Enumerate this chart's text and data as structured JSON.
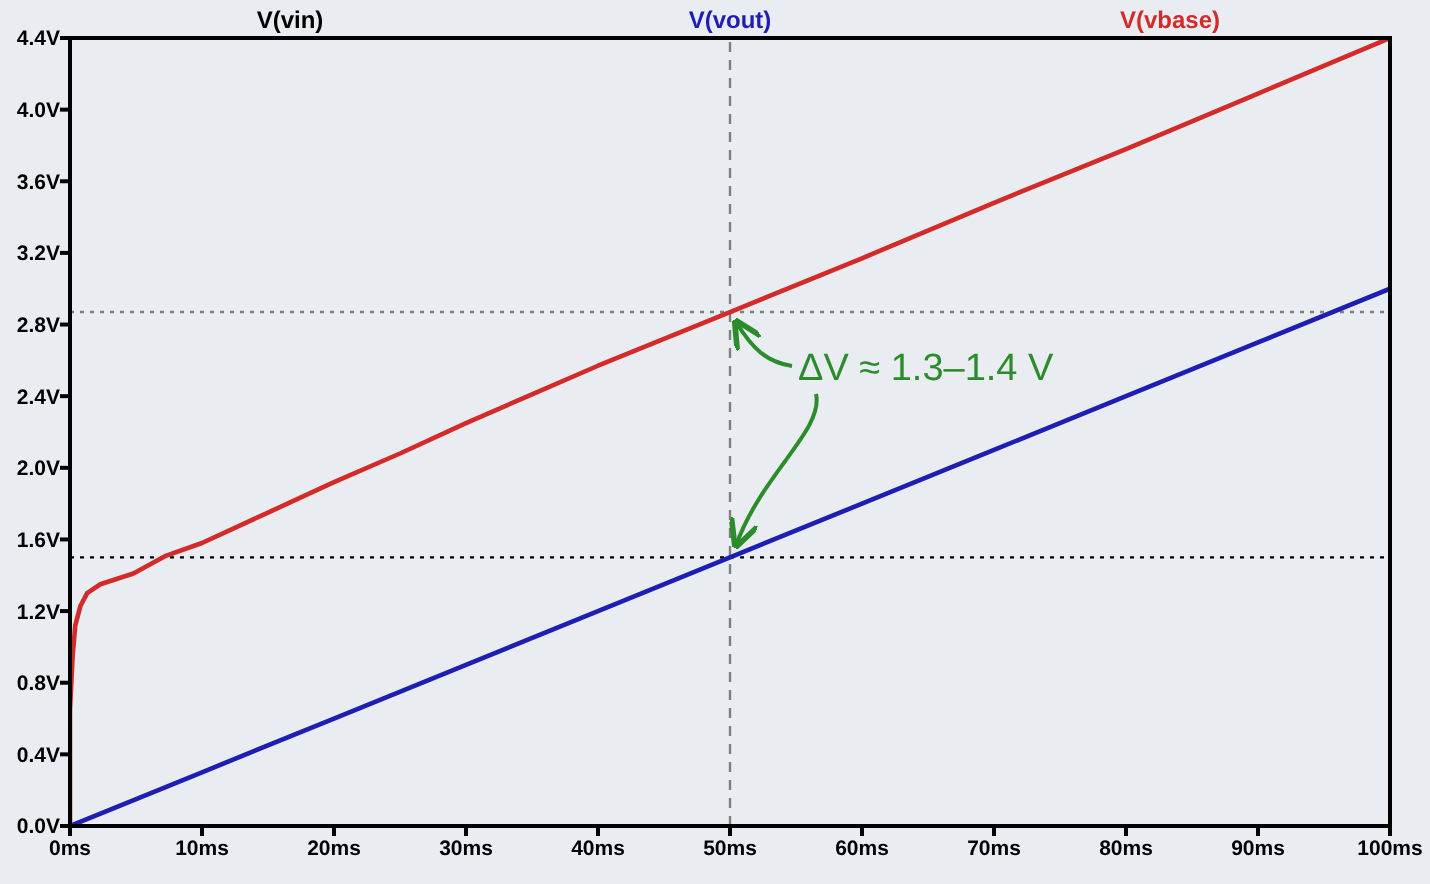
{
  "chart_data": {
    "type": "line",
    "series": [
      {
        "name": "V(vin)",
        "color": "#000000"
      },
      {
        "name": "V(vout)",
        "color": "#1e1eb4",
        "x": [
          0,
          10,
          20,
          30,
          40,
          50,
          60,
          70,
          80,
          90,
          100
        ],
        "values": [
          0,
          0.3,
          0.6,
          0.9,
          1.2,
          1.5,
          1.8,
          2.1,
          2.4,
          2.7,
          3.0
        ]
      },
      {
        "name": "V(vbase)",
        "color": "#d42a2a",
        "x": [
          0,
          0,
          0.2,
          0.4,
          0.8,
          1.3,
          2.3,
          4.8,
          7.3,
          10,
          15,
          20,
          25,
          30,
          35,
          40,
          45,
          50,
          60,
          70,
          80,
          90,
          100
        ],
        "values": [
          0,
          0.65,
          0.95,
          1.12,
          1.23,
          1.3,
          1.35,
          1.41,
          1.51,
          1.58,
          1.75,
          1.92,
          2.08,
          2.25,
          2.41,
          2.57,
          2.72,
          2.87,
          3.17,
          3.48,
          3.78,
          4.09,
          4.4
        ]
      }
    ],
    "xlim": [
      0,
      100
    ],
    "xticks": [
      {
        "value": 0,
        "label": "0ms"
      },
      {
        "value": 10,
        "label": "10ms"
      },
      {
        "value": 20,
        "label": "20ms"
      },
      {
        "value": 30,
        "label": "30ms"
      },
      {
        "value": 40,
        "label": "40ms"
      },
      {
        "value": 50,
        "label": "50ms"
      },
      {
        "value": 60,
        "label": "60ms"
      },
      {
        "value": 70,
        "label": "70ms"
      },
      {
        "value": 80,
        "label": "80ms"
      },
      {
        "value": 90,
        "label": "90ms"
      },
      {
        "value": 100,
        "label": "100ms"
      }
    ],
    "ylim": [
      0,
      4.4
    ],
    "yticks": [
      {
        "value": 0,
        "label": "0.0V"
      },
      {
        "value": 0.4,
        "label": "0.4V"
      },
      {
        "value": 0.8,
        "label": "0.8V"
      },
      {
        "value": 1.2,
        "label": "1.2V"
      },
      {
        "value": 1.6,
        "label": "1.6V"
      },
      {
        "value": 2.0,
        "label": "2.0V"
      },
      {
        "value": 2.4,
        "label": "2.4V"
      },
      {
        "value": 2.8,
        "label": "2.8V"
      },
      {
        "value": 3.2,
        "label": "3.2V"
      },
      {
        "value": 3.6,
        "label": "3.6V"
      },
      {
        "value": 4.0,
        "label": "4.0V"
      },
      {
        "value": 4.4,
        "label": "4.4V"
      }
    ],
    "legend": "top",
    "ref_lines": [
      {
        "axis": "x",
        "value": 50,
        "color": "#808080",
        "line_style": "dashed"
      },
      {
        "axis": "y",
        "value": 2.87,
        "color": "#808080",
        "line_style": "dotted"
      },
      {
        "axis": "y",
        "value": 1.5,
        "color": "#000000",
        "line_style": "dotted"
      }
    ],
    "annotations": [
      {
        "text": "ΔV ≈ 1.3–1.4 V",
        "x": 50,
        "y": 2.87
      }
    ]
  }
}
